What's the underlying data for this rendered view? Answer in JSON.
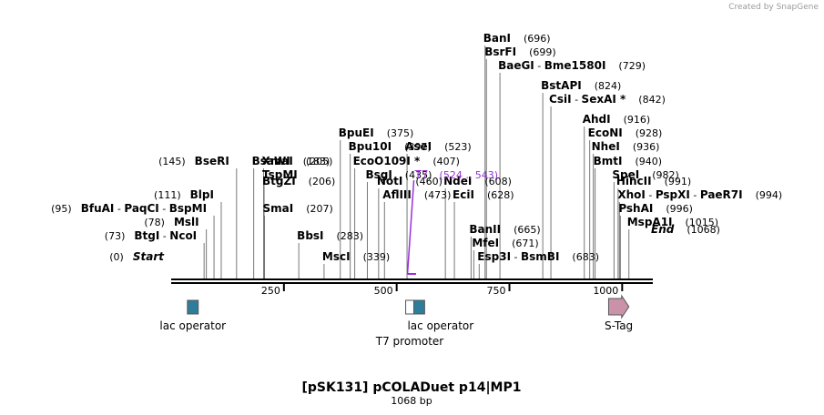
{
  "credit": "Created by SnapGene",
  "title": "[pSK131] pCOLADuet p14|MP1",
  "length_label": "1068 bp",
  "sequence_length": 1068,
  "ticks": [
    "250",
    "500",
    "750",
    "1000"
  ],
  "tick_values": [
    250,
    500,
    750,
    1000
  ],
  "sites": [
    {
      "pos": 0,
      "side": "left",
      "parts": [
        {
          "name": "Start",
          "italic": true
        }
      ],
      "pos_label": "(0)"
    },
    {
      "pos": 73,
      "side": "left",
      "parts": [
        {
          "name": "BtgI"
        },
        {
          "name": "NcoI"
        }
      ],
      "pos_label": "(73)"
    },
    {
      "pos": 78,
      "side": "left",
      "parts": [
        {
          "name": "MslI"
        }
      ],
      "pos_label": "(78)"
    },
    {
      "pos": 95,
      "side": "left",
      "parts": [
        {
          "name": "BfuAI"
        },
        {
          "name": "PaqCI"
        },
        {
          "name": "BspMI"
        }
      ],
      "pos_label": "(95)"
    },
    {
      "pos": 111,
      "side": "left",
      "parts": [
        {
          "name": "BlpI"
        }
      ],
      "pos_label": "(111)"
    },
    {
      "pos": 145,
      "side": "left",
      "parts": [
        {
          "name": "BseRI"
        }
      ],
      "pos_label": "(145)"
    },
    {
      "pos": 183,
      "side": "right",
      "parts": [
        {
          "name": "BsaWI"
        }
      ],
      "pos_label": "(183)"
    },
    {
      "pos": 205,
      "side": "right",
      "parts": [
        {
          "name": "XmaI"
        }
      ],
      "pos_label": "(205)"
    },
    {
      "pos": 206,
      "side": "right",
      "parts": [
        {
          "name": "TspMI"
        }
      ],
      "pos_label": ""
    },
    {
      "pos": 206,
      "side": "right",
      "parts": [
        {
          "name": "BtgZI"
        }
      ],
      "pos_label": "(206)"
    },
    {
      "pos": 207,
      "side": "right",
      "parts": [
        {
          "name": "SmaI"
        }
      ],
      "pos_label": "(207)"
    },
    {
      "pos": 283,
      "side": "right",
      "parts": [
        {
          "name": "BbsI"
        }
      ],
      "pos_label": "(283)"
    },
    {
      "pos": 339,
      "side": "right",
      "parts": [
        {
          "name": "MscI"
        }
      ],
      "pos_label": "(339)"
    },
    {
      "pos": 375,
      "side": "right",
      "parts": [
        {
          "name": "BpuEI"
        }
      ],
      "pos_label": "(375)"
    },
    {
      "pos": 397,
      "side": "right",
      "parts": [
        {
          "name": "Bpu10I"
        }
      ],
      "pos_label": "(397)"
    },
    {
      "pos": 407,
      "side": "right",
      "parts": [
        {
          "name": "EcoO109I *"
        }
      ],
      "pos_label": "(407)"
    },
    {
      "pos": 435,
      "side": "right",
      "parts": [
        {
          "name": "BsgI"
        }
      ],
      "pos_label": "(435)"
    },
    {
      "pos": 460,
      "side": "right",
      "parts": [
        {
          "name": "NotI"
        }
      ],
      "pos_label": "(460)"
    },
    {
      "pos": 473,
      "side": "right",
      "parts": [
        {
          "name": "AflIII"
        }
      ],
      "pos_label": "(473)"
    },
    {
      "pos": 523,
      "side": "right",
      "parts": [
        {
          "name": "AseI"
        }
      ],
      "pos_label": "(523)"
    },
    {
      "pos": 608,
      "side": "right",
      "parts": [
        {
          "name": "NdeI"
        }
      ],
      "pos_label": "(608)"
    },
    {
      "pos": 628,
      "side": "right",
      "parts": [
        {
          "name": "EciI"
        }
      ],
      "pos_label": "(628)"
    },
    {
      "pos": 665,
      "side": "right",
      "parts": [
        {
          "name": "BanII"
        }
      ],
      "pos_label": "(665)"
    },
    {
      "pos": 671,
      "side": "right",
      "parts": [
        {
          "name": "MfeI"
        }
      ],
      "pos_label": "(671)"
    },
    {
      "pos": 683,
      "side": "right",
      "parts": [
        {
          "name": "Esp3I"
        },
        {
          "name": "BsmBI"
        }
      ],
      "pos_label": "(683)"
    },
    {
      "pos": 696,
      "side": "right",
      "parts": [
        {
          "name": "BanI"
        }
      ],
      "pos_label": "(696)"
    },
    {
      "pos": 699,
      "side": "right",
      "parts": [
        {
          "name": "BsrFI"
        }
      ],
      "pos_label": "(699)"
    },
    {
      "pos": 729,
      "side": "right",
      "parts": [
        {
          "name": "BaeGI"
        },
        {
          "name": "Bme1580I"
        }
      ],
      "pos_label": "(729)"
    },
    {
      "pos": 824,
      "side": "right",
      "parts": [
        {
          "name": "BstAPI"
        }
      ],
      "pos_label": "(824)"
    },
    {
      "pos": 842,
      "side": "right",
      "parts": [
        {
          "name": "CsiI"
        },
        {
          "name": "SexAI *"
        }
      ],
      "pos_label": "(842)"
    },
    {
      "pos": 916,
      "side": "right",
      "parts": [
        {
          "name": "AhdI"
        }
      ],
      "pos_label": "(916)"
    },
    {
      "pos": 928,
      "side": "right",
      "parts": [
        {
          "name": "EcoNI"
        }
      ],
      "pos_label": "(928)"
    },
    {
      "pos": 936,
      "side": "right",
      "parts": [
        {
          "name": "NheI"
        }
      ],
      "pos_label": "(936)"
    },
    {
      "pos": 940,
      "side": "right",
      "parts": [
        {
          "name": "BmtI"
        }
      ],
      "pos_label": "(940)"
    },
    {
      "pos": 982,
      "side": "right",
      "parts": [
        {
          "name": "SpeI"
        }
      ],
      "pos_label": "(982)"
    },
    {
      "pos": 991,
      "side": "right",
      "parts": [
        {
          "name": "HincII"
        }
      ],
      "pos_label": "(991)"
    },
    {
      "pos": 994,
      "side": "right",
      "parts": [
        {
          "name": "XhoI"
        },
        {
          "name": "PspXI"
        },
        {
          "name": "PaeR7I"
        }
      ],
      "pos_label": "(994)"
    },
    {
      "pos": 996,
      "side": "right",
      "parts": [
        {
          "name": "PshAI"
        }
      ],
      "pos_label": "(996)"
    },
    {
      "pos": 1015,
      "side": "right",
      "parts": [
        {
          "name": "MspA1I"
        }
      ],
      "pos_label": "(1015)"
    },
    {
      "pos": 1068,
      "side": "right",
      "parts": [
        {
          "name": "End",
          "italic": true
        }
      ],
      "pos_label": "(1068)"
    }
  ],
  "primer": {
    "name": "T7",
    "range_label": "(524 .. 543)",
    "start": 524,
    "end": 543,
    "color": "#9b30d9"
  },
  "features": [
    {
      "name": "lac operator",
      "start": 36,
      "end": 60,
      "shape": "box",
      "color": "#2e7d9a"
    },
    {
      "name": "T7 promoter",
      "start": 520,
      "end": 538,
      "shape": "box",
      "color": "#ffffff"
    },
    {
      "name": "lac operator",
      "start": 538,
      "end": 562,
      "shape": "box",
      "color": "#2e7d9a"
    },
    {
      "name": "S-Tag",
      "start": 970,
      "end": 1015,
      "shape": "arrow",
      "color": "#c992a8"
    }
  ]
}
